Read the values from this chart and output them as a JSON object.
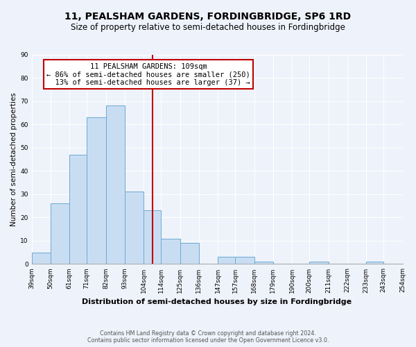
{
  "title": "11, PEALSHAM GARDENS, FORDINGBRIDGE, SP6 1RD",
  "subtitle": "Size of property relative to semi-detached houses in Fordingbridge",
  "xlabel": "Distribution of semi-detached houses by size in Fordingbridge",
  "ylabel": "Number of semi-detached properties",
  "footnote1": "Contains HM Land Registry data © Crown copyright and database right 2024.",
  "footnote2": "Contains public sector information licensed under the Open Government Licence v3.0.",
  "bin_labels": [
    "39sqm",
    "50sqm",
    "61sqm",
    "71sqm",
    "82sqm",
    "93sqm",
    "104sqm",
    "114sqm",
    "125sqm",
    "136sqm",
    "147sqm",
    "157sqm",
    "168sqm",
    "179sqm",
    "190sqm",
    "200sqm",
    "211sqm",
    "222sqm",
    "233sqm",
    "243sqm",
    "254sqm"
  ],
  "bin_edges": [
    39,
    50,
    61,
    71,
    82,
    93,
    104,
    114,
    125,
    136,
    147,
    157,
    168,
    179,
    190,
    200,
    211,
    222,
    233,
    243,
    254
  ],
  "counts": [
    5,
    26,
    47,
    63,
    68,
    31,
    23,
    11,
    9,
    0,
    3,
    3,
    1,
    0,
    0,
    1,
    0,
    0,
    1,
    0
  ],
  "vline_x": 109,
  "bar_color": "#c9ddf2",
  "bar_edge_color": "#6aaad4",
  "vline_color": "#c00000",
  "annotation_line1": "11 PEALSHAM GARDENS: 109sqm",
  "annotation_line2": "← 86% of semi-detached houses are smaller (250)",
  "annotation_line3": "  13% of semi-detached houses are larger (37) →",
  "annotation_box_color": "#ffffff",
  "annotation_box_edge": "#c00000",
  "ylim": [
    0,
    90
  ],
  "yticks": [
    0,
    10,
    20,
    30,
    40,
    50,
    60,
    70,
    80,
    90
  ],
  "background_color": "#eef2fa",
  "grid_color": "#ffffff",
  "title_fontsize": 10,
  "subtitle_fontsize": 8.5,
  "xlabel_fontsize": 8,
  "ylabel_fontsize": 7.5,
  "tick_fontsize": 6.5,
  "annotation_fontsize": 7.5,
  "footnote_fontsize": 5.8
}
